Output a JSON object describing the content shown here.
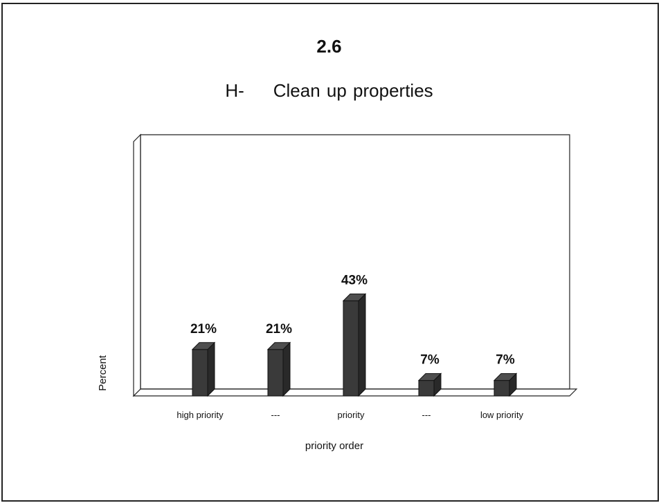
{
  "figure": {
    "number": "2.6",
    "title_prefix": "H-",
    "title_text": "Clean up properties"
  },
  "chart_data": {
    "type": "bar",
    "title": "H-    Clean up properties",
    "categories": [
      "high priority",
      "---",
      "priority",
      "---",
      "low priority"
    ],
    "values": [
      21,
      21,
      43,
      7,
      7
    ],
    "value_labels": [
      "21%",
      "21%",
      "43%",
      "7%",
      "7%"
    ],
    "xlabel": "priority order",
    "ylabel": "Percent",
    "ylim": [
      0,
      100
    ],
    "grid": false,
    "legend": "none",
    "style": "3d",
    "bar_color": "#3a3a3a"
  }
}
